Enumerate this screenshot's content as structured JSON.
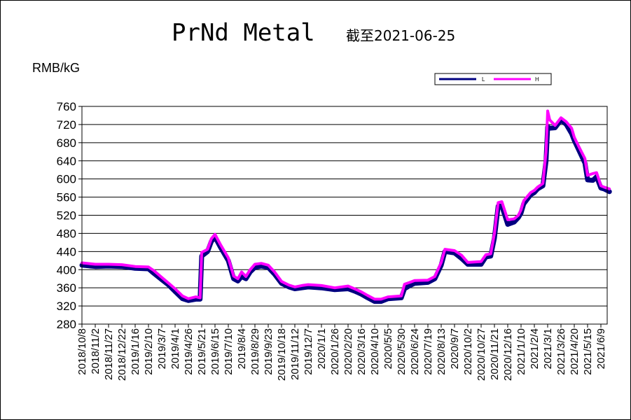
{
  "chart_data": {
    "type": "line",
    "title": "PrNd Metal",
    "subtitle": "截至2021-06-25",
    "ylabel": "RMB/kG",
    "ylim": [
      280,
      760
    ],
    "yticks": [
      280,
      320,
      360,
      400,
      440,
      480,
      520,
      560,
      600,
      640,
      680,
      720,
      760
    ],
    "grid": true,
    "legend_position": "top-right",
    "xticks": [
      "2018/10/8",
      "2018/11/2",
      "2018/11/27",
      "2018/12/22",
      "2019/1/16",
      "2019/2/10",
      "2019/3/7",
      "2019/4/1",
      "2019/4/26",
      "2019/5/21",
      "2019/6/15",
      "2019/7/10",
      "2019/8/4",
      "2019/8/29",
      "2019/9/23",
      "2019/10/18",
      "2019/11/12",
      "2019/12/7",
      "2020/1/1",
      "2020/1/26",
      "2020/2/20",
      "2020/3/16",
      "2020/4/10",
      "2020/5/5",
      "2020/5/30",
      "2020/6/24",
      "2020/7/19",
      "2020/8/13",
      "2020/9/7",
      "2020/10/2",
      "2020/10/27",
      "2020/11/21",
      "2020/12/16",
      "2021/1/10",
      "2021/2/4",
      "2021/3/1",
      "2021/3/26",
      "2021/4/20",
      "2021/5/15",
      "2021/6/9"
    ],
    "x": [
      "2018/10/8",
      "2018/11/2",
      "2018/11/27",
      "2018/12/22",
      "2019/1/16",
      "2019/2/10",
      "2019/2/20",
      "2019/3/7",
      "2019/3/20",
      "2019/4/1",
      "2019/4/15",
      "2019/4/26",
      "2019/5/10",
      "2019/5/18",
      "2019/5/21",
      "2019/6/1",
      "2019/6/8",
      "2019/6/15",
      "2019/6/25",
      "2019/7/10",
      "2019/7/20",
      "2019/7/28",
      "2019/8/4",
      "2019/8/12",
      "2019/8/20",
      "2019/8/29",
      "2019/9/10",
      "2019/9/23",
      "2019/10/5",
      "2019/10/18",
      "2019/11/1",
      "2019/11/12",
      "2019/11/25",
      "2019/12/7",
      "2020/1/1",
      "2020/1/26",
      "2020/2/20",
      "2020/3/5",
      "2020/3/16",
      "2020/3/28",
      "2020/4/10",
      "2020/4/22",
      "2020/5/5",
      "2020/5/30",
      "2020/6/5",
      "2020/6/15",
      "2020/6/24",
      "2020/7/19",
      "2020/8/1",
      "2020/8/13",
      "2020/8/20",
      "2020/9/7",
      "2020/9/20",
      "2020/10/2",
      "2020/10/27",
      "2020/11/5",
      "2020/11/14",
      "2020/11/21",
      "2020/11/28",
      "2020/12/5",
      "2020/12/16",
      "2020/12/28",
      "2021/1/5",
      "2021/1/10",
      "2021/1/15",
      "2021/1/28",
      "2021/2/4",
      "2021/2/10",
      "2021/2/20",
      "2021/2/26",
      "2021/3/1",
      "2021/3/5",
      "2021/3/15",
      "2021/3/26",
      "2021/4/5",
      "2021/4/15",
      "2021/4/20",
      "2021/4/30",
      "2021/5/10",
      "2021/5/15",
      "2021/5/25",
      "2021/6/1",
      "2021/6/9",
      "2021/6/15",
      "2021/6/25"
    ],
    "series": [
      {
        "name": "L",
        "color": "#000080",
        "values": [
          410,
          407,
          408,
          407,
          403,
          402,
          392,
          378,
          366,
          352,
          336,
          332,
          335,
          335,
          430,
          440,
          462,
          472,
          450,
          420,
          380,
          375,
          385,
          380,
          395,
          405,
          408,
          405,
          390,
          370,
          362,
          358,
          360,
          362,
          360,
          356,
          358,
          352,
          346,
          338,
          330,
          330,
          336,
          338,
          358,
          365,
          370,
          372,
          380,
          410,
          440,
          437,
          425,
          412,
          412,
          428,
          430,
          470,
          540,
          540,
          500,
          505,
          515,
          525,
          545,
          565,
          570,
          578,
          585,
          640,
          715,
          712,
          713,
          730,
          720,
          700,
          685,
          660,
          635,
          598,
          597,
          605,
          580,
          578,
          572
        ]
      },
      {
        "name": "H",
        "color": "#ff00ff",
        "values": [
          415,
          412,
          412,
          411,
          407,
          406,
          398,
          383,
          370,
          358,
          342,
          336,
          340,
          338,
          438,
          445,
          468,
          478,
          456,
          426,
          386,
          380,
          395,
          385,
          400,
          412,
          414,
          410,
          395,
          374,
          366,
          362,
          365,
          367,
          365,
          360,
          364,
          357,
          351,
          343,
          335,
          335,
          340,
          342,
          368,
          372,
          376,
          377,
          385,
          416,
          445,
          442,
          432,
          416,
          418,
          433,
          435,
          480,
          548,
          550,
          510,
          512,
          520,
          532,
          552,
          570,
          575,
          582,
          590,
          660,
          750,
          730,
          718,
          735,
          726,
          712,
          692,
          668,
          645,
          608,
          612,
          614,
          585,
          582,
          578
        ]
      }
    ]
  }
}
